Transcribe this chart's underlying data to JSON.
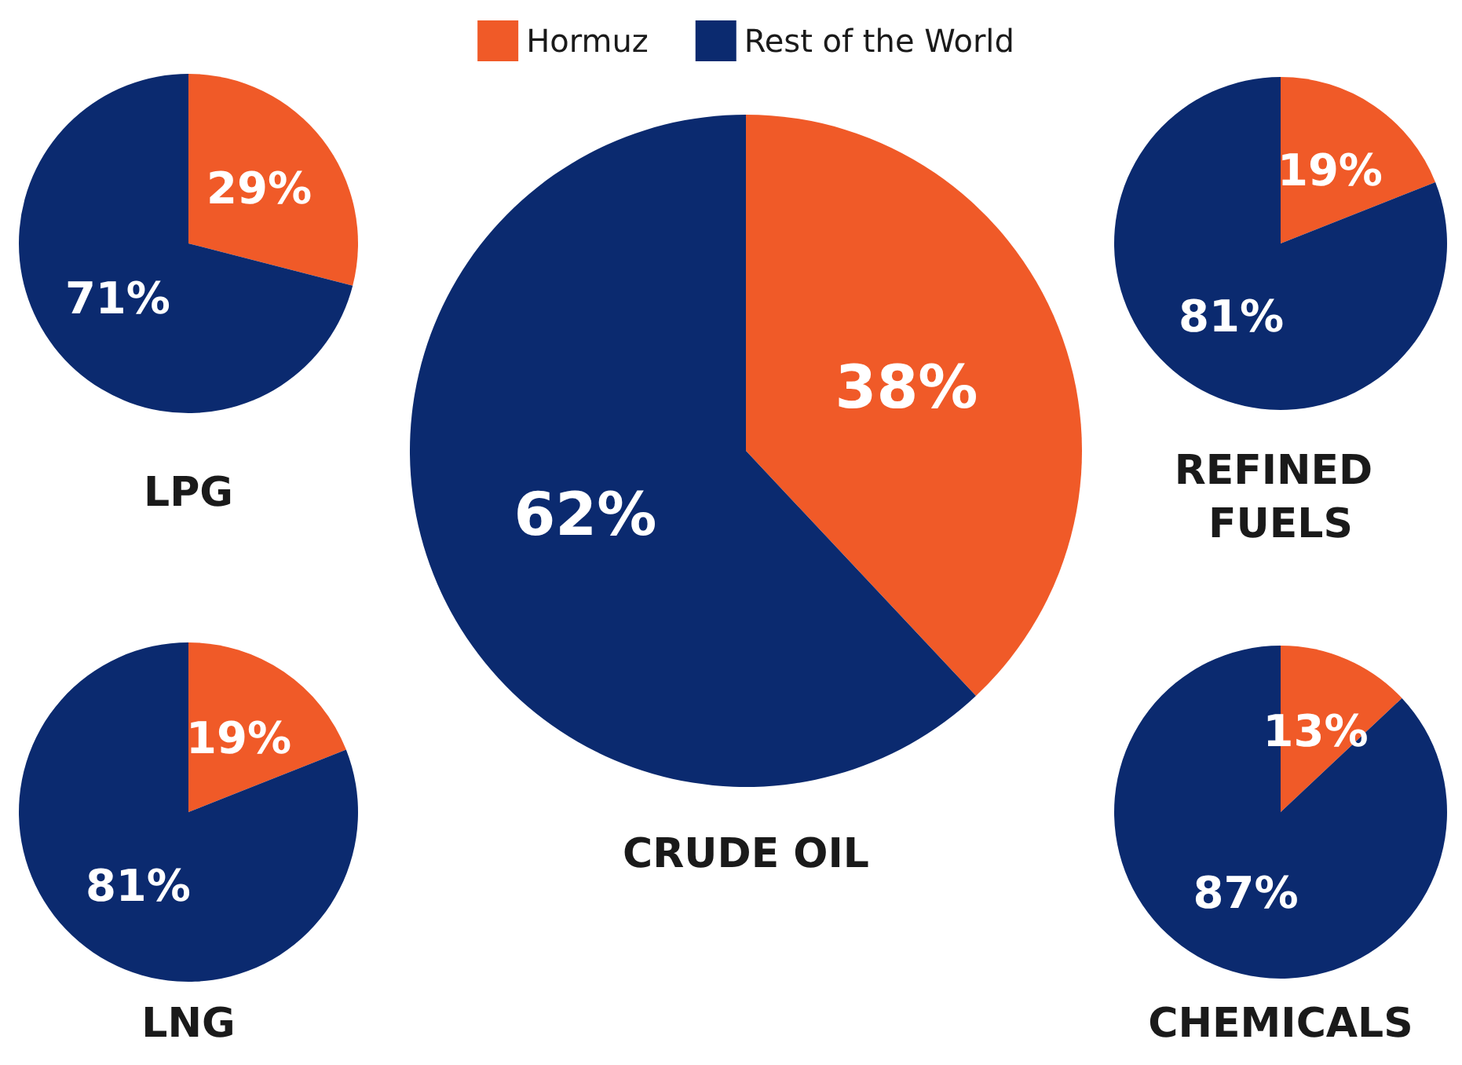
{
  "chart_data": [
    {
      "type": "pie",
      "title": "LPG",
      "categories": [
        null,
        null
      ],
      "values": [
        29,
        71
      ],
      "value_labels": [
        "29%",
        "71%"
      ],
      "colors": [
        "#f05a28",
        "#0b2a6f"
      ]
    },
    {
      "type": "pie",
      "title": "REFINED FUELS",
      "categories": [
        null,
        null
      ],
      "values": [
        19,
        81
      ],
      "value_labels": [
        "19%",
        "81%"
      ],
      "colors": [
        "#f05a28",
        "#0b2a6f"
      ]
    },
    {
      "type": "pie",
      "title": "CRUDE OIL",
      "categories": [
        "Hormuz",
        "Rest of the World"
      ],
      "values": [
        38,
        62
      ],
      "value_labels": [
        "38%",
        "62%"
      ],
      "colors": [
        "#f05a28",
        "#0b2a6f"
      ],
      "legend": "top"
    },
    {
      "type": "pie",
      "title": "LNG",
      "categories": [
        null,
        null
      ],
      "values": [
        19,
        81
      ],
      "value_labels": [
        "19%",
        "81%"
      ],
      "colors": [
        "#f05a28",
        "#0b2a6f"
      ]
    },
    {
      "type": "pie",
      "title": "CHEMICALS",
      "categories": [
        null,
        null
      ],
      "values": [
        13,
        87
      ],
      "value_labels": [
        "13%",
        "87%"
      ],
      "colors": [
        "#f05a28",
        "#0b2a6f"
      ]
    }
  ]
}
